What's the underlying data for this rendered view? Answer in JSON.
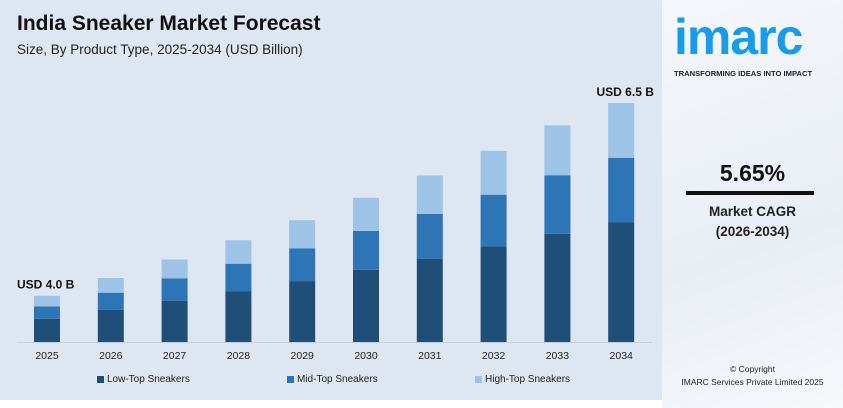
{
  "header": {
    "title": "India Sneaker Market Forecast",
    "subtitle": "Size, By Product Type, 2025-2034 (USD Billion)"
  },
  "chart_data": {
    "type": "bar",
    "stacked": true,
    "categories": [
      "2025",
      "2026",
      "2027",
      "2028",
      "2029",
      "2030",
      "2031",
      "2032",
      "2033",
      "2034"
    ],
    "series": [
      {
        "name": "Low-Top Sneakers",
        "color": "#1f4e79",
        "values": [
          2.0,
          2.12,
          2.24,
          2.36,
          2.49,
          2.64,
          2.78,
          2.94,
          3.1,
          3.25
        ]
      },
      {
        "name": "Mid-Top Sneakers",
        "color": "#2e75b6",
        "values": [
          1.08,
          1.14,
          1.21,
          1.27,
          1.34,
          1.42,
          1.5,
          1.59,
          1.68,
          1.76
        ]
      },
      {
        "name": "High-Top Sneakers",
        "color": "#9dc3e6",
        "values": [
          0.92,
          0.97,
          1.02,
          1.09,
          1.15,
          1.21,
          1.28,
          1.35,
          1.43,
          1.49
        ]
      }
    ],
    "annotations": [
      {
        "category": "2025",
        "text": "USD 4.0 B"
      },
      {
        "category": "2034",
        "text": "USD 6.5 B"
      }
    ],
    "xlabel": "",
    "ylabel": "",
    "grid": false,
    "legend": "bottom"
  },
  "sidebar": {
    "logo": "imarc",
    "tagline": "TRANSFORMING IDEAS INTO IMPACT",
    "cagr": "5.65%",
    "cagr_label": "Market CAGR",
    "cagr_period": "(2026-2034)",
    "copyright": "© Copyright",
    "company": "IMARC Services Private Limited 2025"
  }
}
